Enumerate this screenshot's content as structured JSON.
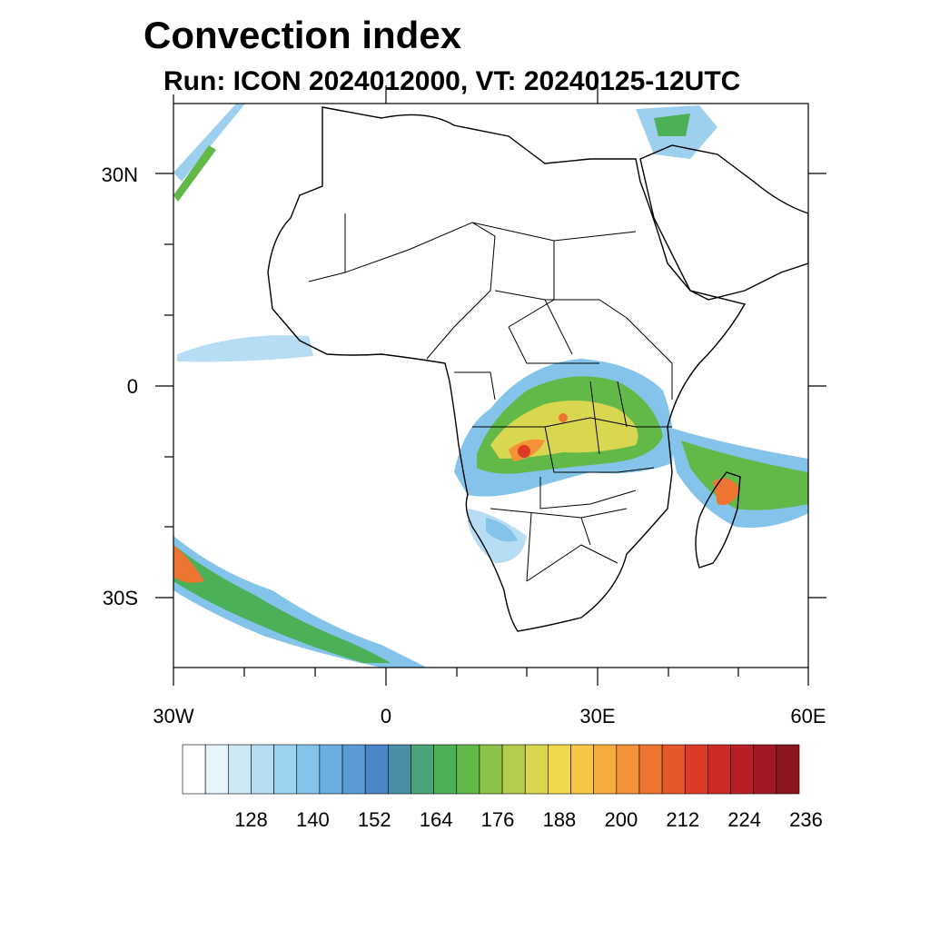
{
  "title": "Convection index",
  "subtitle": "Run: ICON 2024012000,  VT: 20240125-12UTC",
  "axes": {
    "y_ticks": [
      "30N",
      "0",
      "30S"
    ],
    "x_ticks": [
      "30W",
      "0",
      "30E",
      "60E"
    ],
    "lon_range": [
      -30,
      60
    ],
    "lat_range": [
      -40,
      40
    ]
  },
  "colorbar": {
    "labels": [
      "128",
      "140",
      "152",
      "164",
      "176",
      "188",
      "200",
      "212",
      "224",
      "236"
    ],
    "colors": [
      "#ffffff",
      "#e8f4fb",
      "#cfe8f6",
      "#b6ddf3",
      "#9dd3f1",
      "#84c4ea",
      "#6aaee0",
      "#5a9bd5",
      "#4b87c6",
      "#4a8fa6",
      "#4aa37b",
      "#4bb058",
      "#63b948",
      "#8cc24a",
      "#b4cd4d",
      "#d9d650",
      "#f2d94c",
      "#f7c744",
      "#f7ad3e",
      "#f49238",
      "#ee7431",
      "#e6572b",
      "#dc3b28",
      "#cc2a27",
      "#b81e25",
      "#a11722",
      "#8c1620"
    ]
  },
  "colors": {
    "heavy": "#dc3b28",
    "orange": "#f49238",
    "yellow": "#f2d94c",
    "green": "#4bb058",
    "blue": "#84c4ea",
    "lightblue": "#b6ddf3"
  }
}
